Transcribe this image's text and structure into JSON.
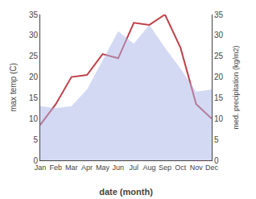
{
  "chart_data": {
    "type": "line",
    "x_label": "date (month)",
    "y_label": "max temp (C)",
    "y2_label": "med. precipitation (kg/m2)",
    "categories": [
      "Jan",
      "Feb",
      "Mar",
      "Apr",
      "May",
      "Jun",
      "Jul",
      "Aug",
      "Sep",
      "Oct",
      "Nov",
      "Dec"
    ],
    "series": [
      {
        "type": "area",
        "color": "#aab4e8",
        "axis": "y2",
        "values": [
          13.0,
          12.5,
          13.0,
          17.0,
          24.0,
          31.0,
          28.0,
          32.5,
          27.0,
          22.0,
          16.5,
          17.0
        ]
      },
      {
        "type": "line",
        "color": "#c0404a",
        "values": [
          8.5,
          13.5,
          20.0,
          20.5,
          25.5,
          24.5,
          33.0,
          32.5,
          35.0,
          27.0,
          13.5,
          10.0
        ]
      }
    ],
    "ylim": [
      0,
      35
    ],
    "yticks": [
      0,
      5,
      10,
      15,
      20,
      25,
      30,
      35
    ],
    "y2lim": [
      0,
      35
    ],
    "y2ticks": [
      0,
      5,
      10,
      15,
      20,
      25,
      30,
      35
    ],
    "grid": false
  }
}
